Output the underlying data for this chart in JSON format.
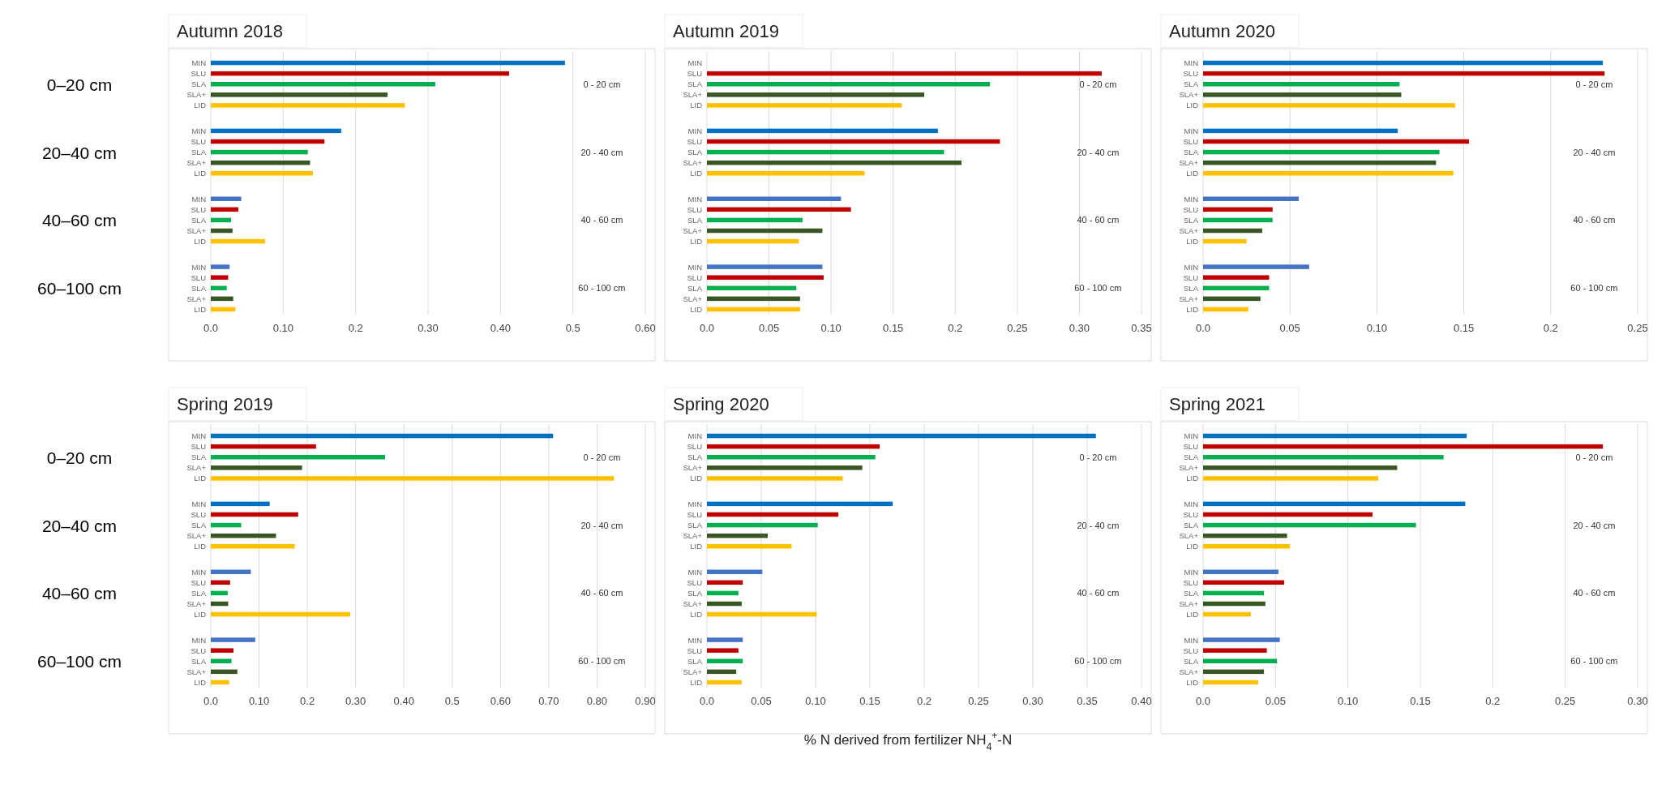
{
  "chart_data": [
    {
      "type": "bar",
      "orientation": "horizontal",
      "title": "Autumn 2018",
      "categories": [
        "MIN",
        "SLU",
        "SLA",
        "SLA+",
        "LID",
        "MIN",
        "SLU",
        "SLA",
        "SLA+",
        "LID",
        "MIN",
        "SLU",
        "SLA",
        "SLA+",
        "LID",
        "MIN",
        "SLU",
        "SLA",
        "SLA+",
        "LID"
      ],
      "values": [
        0.489,
        0.412,
        0.31,
        0.244,
        0.268,
        0.18,
        0.157,
        0.134,
        0.137,
        0.141,
        0.042,
        0.038,
        0.028,
        0.03,
        0.075,
        0.026,
        0.024,
        0.022,
        0.031,
        0.034
      ],
      "colors": [
        "#0070c0",
        "#c00000",
        "#00b050",
        "#375623",
        "#ffc000",
        "#0070c0",
        "#c00000",
        "#00b050",
        "#375623",
        "#ffc000",
        "#4472c4",
        "#c00000",
        "#00b050",
        "#375623",
        "#ffc000",
        "#4472c4",
        "#c00000",
        "#00b050",
        "#375623",
        "#ffc000"
      ],
      "xlim": [
        0,
        0.6
      ],
      "xticks": [
        {
          "value": 0,
          "label": "0.0"
        },
        {
          "value": 0.1,
          "label": "0.10"
        },
        {
          "value": 0.2,
          "label": "0.2"
        },
        {
          "value": 0.3,
          "label": "0.30"
        },
        {
          "value": 0.4,
          "label": "0.40"
        },
        {
          "value": 0.5,
          "label": "0.5"
        },
        {
          "value": 0.6,
          "label": "0.60"
        }
      ],
      "grid": "x",
      "annotations": [
        "0 - 20 cm",
        "20 - 40 cm",
        "40 - 60 cm",
        "60 - 100 cm",
        "0–20 cm",
        "20–40 cm",
        "40–60 cm",
        "60–100 cm"
      ]
    },
    {
      "type": "bar",
      "orientation": "horizontal",
      "title": "Autumn 2019",
      "categories": [
        "MIN",
        "SLU",
        "SLA",
        "SLA+",
        "LID",
        "MIN",
        "SLU",
        "SLA",
        "SLA+",
        "LID",
        "MIN",
        "SLU",
        "SLA",
        "SLA+",
        "LID",
        "MIN",
        "SLU",
        "SLA",
        "SLA+",
        "LID"
      ],
      "values": [
        null,
        0.318,
        0.228,
        0.175,
        0.157,
        0.186,
        0.236,
        0.191,
        0.205,
        0.127,
        0.108,
        0.116,
        0.077,
        0.093,
        0.074,
        0.093,
        0.094,
        0.072,
        0.075,
        0.075
      ],
      "colors": [
        null,
        "#c00000",
        "#00b050",
        "#375623",
        "#ffc000",
        "#0070c0",
        "#c00000",
        "#00b050",
        "#375623",
        "#ffc000",
        "#4472c4",
        "#c00000",
        "#00b050",
        "#375623",
        "#ffc000",
        "#4472c4",
        "#c00000",
        "#00b050",
        "#375623",
        "#ffc000"
      ],
      "xlim": [
        0,
        0.35
      ],
      "xticks": [
        {
          "value": 0,
          "label": "0.0"
        },
        0.05,
        {
          "value": 0.1,
          "label": "0.10"
        },
        0.15,
        {
          "value": 0.2,
          "label": "0.2"
        },
        0.25,
        {
          "value": 0.3,
          "label": "0.30"
        },
        0.35
      ],
      "grid": "x",
      "annotations": [
        "0 - 20 cm",
        "20 - 40 cm",
        "40 - 60 cm",
        "60 - 100 cm"
      ]
    },
    {
      "type": "bar",
      "orientation": "horizontal",
      "title": "Autumn 2020",
      "categories": [
        "MIN",
        "SLU",
        "SLA",
        "SLA+",
        "LID",
        "MIN",
        "SLU",
        "SLA",
        "SLA+",
        "LID",
        "MIN",
        "SLU",
        "SLA",
        "SLA+",
        "LID",
        "MIN",
        "SLU",
        "SLA",
        "SLA+",
        "LID"
      ],
      "values": [
        0.23,
        0.231,
        0.113,
        0.114,
        0.145,
        0.112,
        0.153,
        0.136,
        0.134,
        0.144,
        0.055,
        0.04,
        0.04,
        0.034,
        0.025,
        0.061,
        0.038,
        0.038,
        0.033,
        0.026
      ],
      "colors": [
        "#0070c0",
        "#c00000",
        "#00b050",
        "#375623",
        "#ffc000",
        "#0070c0",
        "#c00000",
        "#00b050",
        "#375623",
        "#ffc000",
        "#4472c4",
        "#c00000",
        "#00b050",
        "#375623",
        "#ffc000",
        "#4472c4",
        "#c00000",
        "#00b050",
        "#375623",
        "#ffc000"
      ],
      "xlim": [
        0,
        0.25
      ],
      "xticks": [
        {
          "value": 0,
          "label": "0.0"
        },
        0.05,
        {
          "value": 0.1,
          "label": "0.10"
        },
        0.15,
        {
          "value": 0.2,
          "label": "0.2"
        },
        0.25
      ],
      "grid": "x",
      "annotations": [
        "0 - 20 cm",
        "20 - 40 cm",
        "40 - 60 cm",
        "60 - 100 cm"
      ]
    },
    {
      "type": "bar",
      "orientation": "horizontal",
      "title": "Spring 2019",
      "categories": [
        "MIN",
        "SLU",
        "SLA",
        "SLA+",
        "LID",
        "MIN",
        "SLU",
        "SLA",
        "SLA+",
        "LID",
        "MIN",
        "SLU",
        "SLA",
        "SLA+",
        "LID",
        "MIN",
        "SLU",
        "SLA",
        "SLA+",
        "LID"
      ],
      "values": [
        0.709,
        0.218,
        0.361,
        0.189,
        0.835,
        0.122,
        0.181,
        0.063,
        0.135,
        0.174,
        0.083,
        0.04,
        0.035,
        0.036,
        0.289,
        0.092,
        0.047,
        0.043,
        0.055,
        0.038
      ],
      "colors": [
        "#0070c0",
        "#c00000",
        "#00b050",
        "#375623",
        "#ffc000",
        "#0070c0",
        "#c00000",
        "#00b050",
        "#375623",
        "#ffc000",
        "#4472c4",
        "#c00000",
        "#00b050",
        "#375623",
        "#ffc000",
        "#4472c4",
        "#c00000",
        "#00b050",
        "#375623",
        "#ffc000"
      ],
      "xlim": [
        0,
        0.9
      ],
      "xticks": [
        {
          "value": 0,
          "label": "0.0"
        },
        {
          "value": 0.1,
          "label": "0.10"
        },
        {
          "value": 0.2,
          "label": "0.2"
        },
        {
          "value": 0.3,
          "label": "0.30"
        },
        {
          "value": 0.4,
          "label": "0.40"
        },
        {
          "value": 0.5,
          "label": "0.5"
        },
        {
          "value": 0.6,
          "label": "0.60"
        },
        {
          "value": 0.7,
          "label": "0.70"
        },
        {
          "value": 0.8,
          "label": "0.80"
        },
        {
          "value": 0.9,
          "label": "0.90"
        }
      ],
      "grid": "x",
      "annotations": [
        "0 - 20 cm",
        "20 - 40 cm",
        "40 - 60 cm",
        "60 - 100 cm",
        "0–20 cm",
        "20–40 cm",
        "40–60 cm",
        "60–100 cm"
      ]
    },
    {
      "type": "bar",
      "orientation": "horizontal",
      "title": "Spring 2020",
      "xlabel": "% N derived from fertilizer NH$_{4}$$^{+}$-N",
      "categories": [
        "MIN",
        "SLU",
        "SLA",
        "SLA+",
        "LID",
        "MIN",
        "SLU",
        "SLA",
        "SLA+",
        "LID",
        "MIN",
        "SLU",
        "SLA",
        "SLA+",
        "LID",
        "MIN",
        "SLU",
        "SLA",
        "SLA+",
        "LID"
      ],
      "values": [
        0.358,
        0.159,
        0.155,
        0.143,
        0.125,
        0.171,
        0.121,
        0.102,
        0.056,
        0.078,
        0.051,
        0.033,
        0.029,
        0.032,
        0.101,
        0.033,
        0.029,
        0.033,
        0.027,
        0.032
      ],
      "colors": [
        "#0070c0",
        "#c00000",
        "#00b050",
        "#375623",
        "#ffc000",
        "#0070c0",
        "#c00000",
        "#00b050",
        "#375623",
        "#ffc000",
        "#4472c4",
        "#c00000",
        "#00b050",
        "#375623",
        "#ffc000",
        "#4472c4",
        "#c00000",
        "#00b050",
        "#375623",
        "#ffc000"
      ],
      "xlim": [
        0,
        0.4
      ],
      "xticks": [
        {
          "value": 0,
          "label": "0.0"
        },
        0.05,
        {
          "value": 0.1,
          "label": "0.10"
        },
        0.15,
        {
          "value": 0.2,
          "label": "0.2"
        },
        0.25,
        {
          "value": 0.3,
          "label": "0.30"
        },
        0.35,
        {
          "value": 0.4,
          "label": "0.40"
        }
      ],
      "grid": "x",
      "annotations": [
        "0 - 20 cm",
        "20 - 40 cm",
        "40 - 60 cm",
        "60 - 100 cm"
      ]
    },
    {
      "type": "bar",
      "orientation": "horizontal",
      "title": "Spring 2021",
      "categories": [
        "MIN",
        "SLU",
        "SLA",
        "SLA+",
        "LID",
        "MIN",
        "SLU",
        "SLA",
        "SLA+",
        "LID",
        "MIN",
        "SLU",
        "SLA",
        "SLA+",
        "LID",
        "MIN",
        "SLU",
        "SLA",
        "SLA+",
        "LID"
      ],
      "values": [
        0.182,
        0.276,
        0.166,
        0.134,
        0.121,
        0.181,
        0.117,
        0.147,
        0.058,
        0.06,
        0.052,
        0.056,
        0.042,
        0.043,
        0.033,
        0.053,
        0.044,
        0.051,
        0.042,
        0.038
      ],
      "colors": [
        "#0070c0",
        "#c00000",
        "#00b050",
        "#375623",
        "#ffc000",
        "#0070c0",
        "#c00000",
        "#00b050",
        "#375623",
        "#ffc000",
        "#4472c4",
        "#c00000",
        "#00b050",
        "#375623",
        "#ffc000",
        "#4472c4",
        "#c00000",
        "#00b050",
        "#375623",
        "#ffc000"
      ],
      "xlim": [
        0,
        0.3
      ],
      "xticks": [
        {
          "value": 0,
          "label": "0.0"
        },
        0.05,
        {
          "value": 0.1,
          "label": "0.10"
        },
        0.15,
        {
          "value": 0.2,
          "label": "0.2"
        },
        0.25,
        {
          "value": 0.3,
          "label": "0.30"
        }
      ],
      "grid": "x",
      "annotations": [
        "0 - 20 cm",
        "20 - 40 cm",
        "40 - 60 cm",
        "60 - 100 cm"
      ]
    }
  ]
}
